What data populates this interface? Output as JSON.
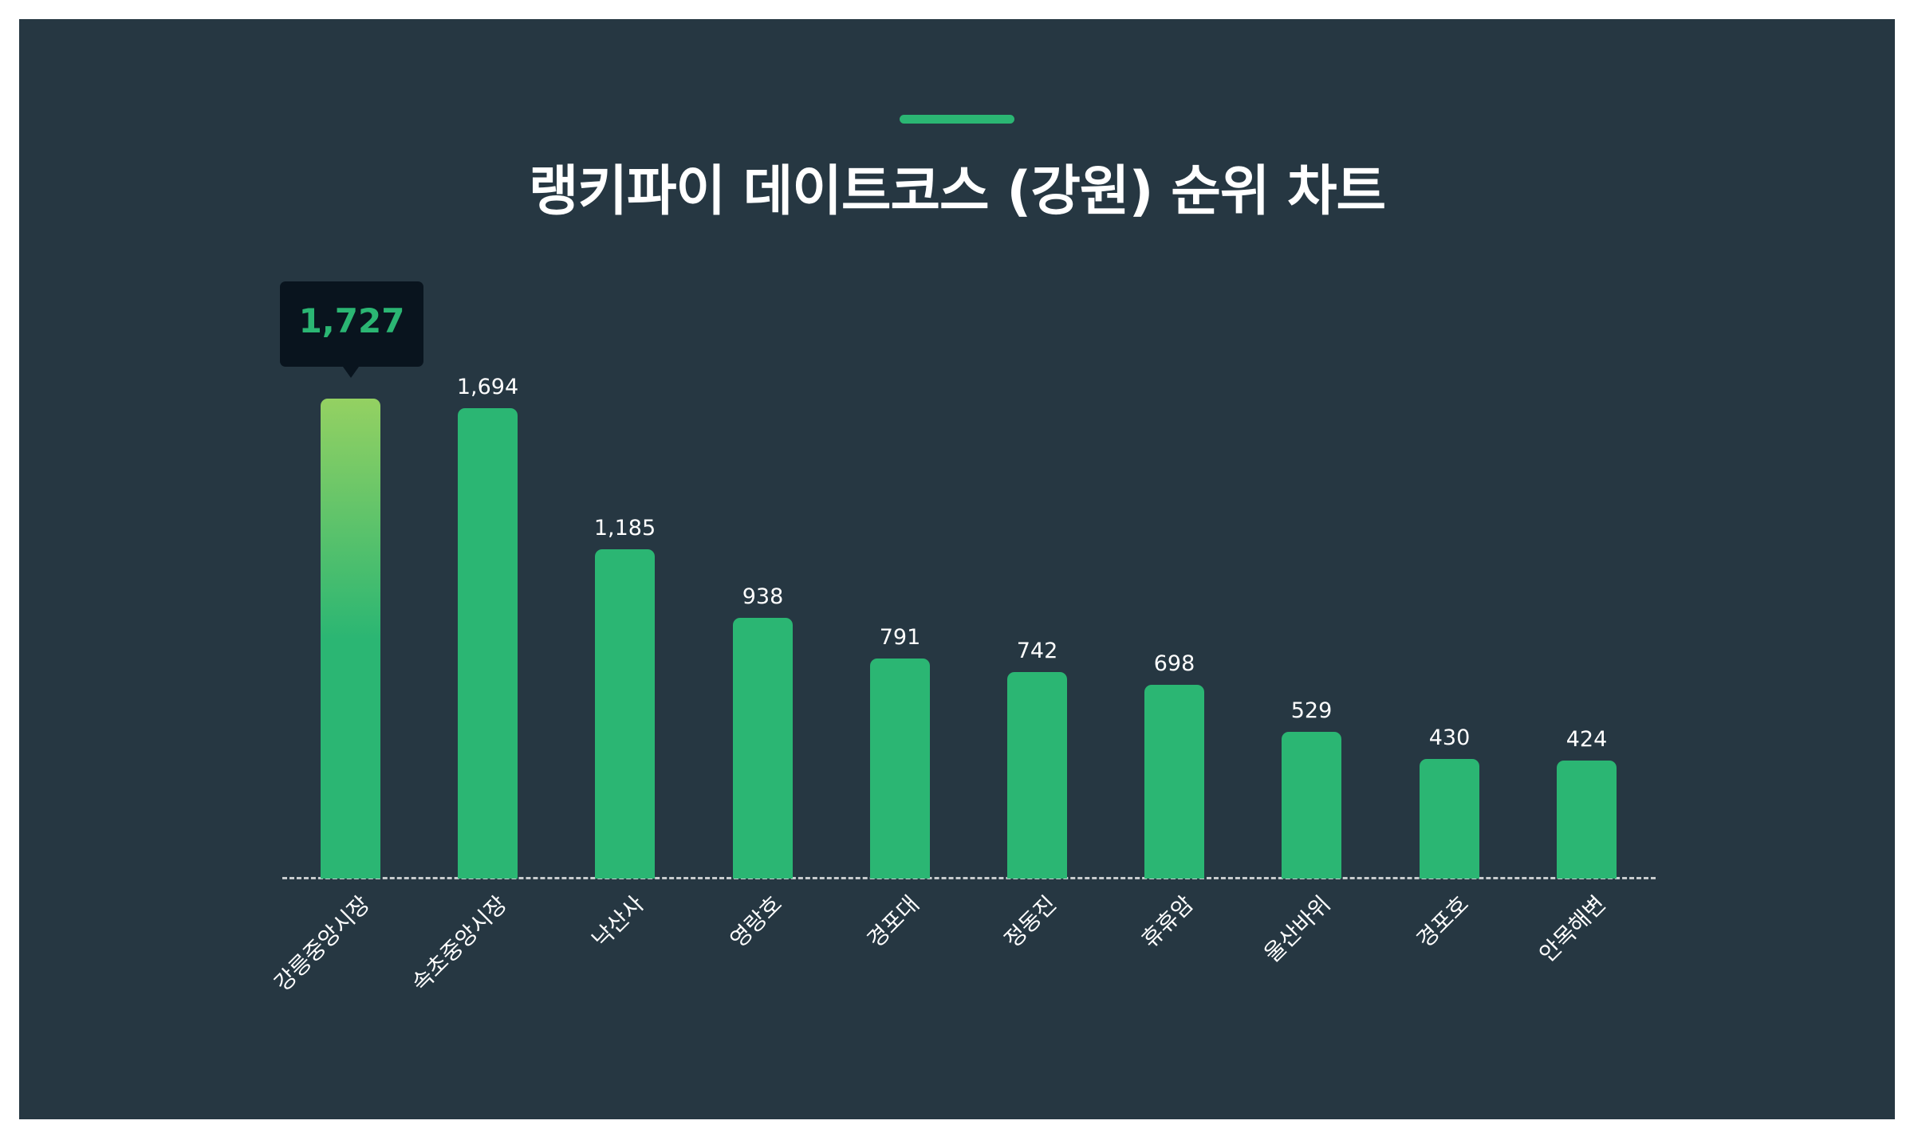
{
  "header": {
    "title": "랭키파이 데이트코스 (강원) 순위 차트"
  },
  "tooltip": {
    "value": "1,727"
  },
  "colors": {
    "background": "#263742",
    "bar": "#2BB673",
    "bar_highlight_top": "#94D162",
    "tooltip_bg": "#09141E",
    "accent": "#2BB673"
  },
  "bars": [
    {
      "label": "강릉중앙시장",
      "value": 1727,
      "display": "1,727"
    },
    {
      "label": "속초중앙시장",
      "value": 1694,
      "display": "1,694"
    },
    {
      "label": "낙산사",
      "value": 1185,
      "display": "1,185"
    },
    {
      "label": "영랑호",
      "value": 938,
      "display": "938"
    },
    {
      "label": "경포대",
      "value": 791,
      "display": "791"
    },
    {
      "label": "정동진",
      "value": 742,
      "display": "742"
    },
    {
      "label": "휴휴암",
      "value": 698,
      "display": "698"
    },
    {
      "label": "울산바위",
      "value": 529,
      "display": "529"
    },
    {
      "label": "경포호",
      "value": 430,
      "display": "430"
    },
    {
      "label": "안목해변",
      "value": 424,
      "display": "424"
    }
  ],
  "chart_data": {
    "type": "bar",
    "title": "랭키파이 데이트코스 (강원) 순위 차트",
    "categories": [
      "강릉중앙시장",
      "속초중앙시장",
      "낙산사",
      "영랑호",
      "경포대",
      "정동진",
      "휴휴암",
      "울산바위",
      "경포호",
      "안목해변"
    ],
    "values": [
      1727,
      1694,
      1185,
      938,
      791,
      742,
      698,
      529,
      430,
      424
    ],
    "xlabel": "",
    "ylabel": "",
    "ylim": [
      0,
      1727
    ],
    "grid": false,
    "legend": null,
    "highlighted": {
      "category": "강릉중앙시장",
      "tooltip": "1,727"
    }
  }
}
